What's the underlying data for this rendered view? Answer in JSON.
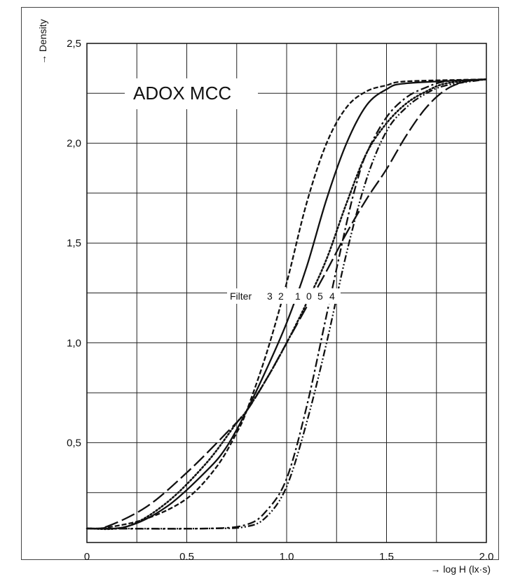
{
  "chart_data": {
    "type": "line",
    "title": "ADOX MCC",
    "xlabel": "→ log H (lx·s)",
    "ylabel": "→ Density",
    "xlim": [
      0,
      2.0
    ],
    "ylim": [
      0,
      2.5
    ],
    "grid": true,
    "x_ticks": [
      {
        "value": 0,
        "label": "0"
      },
      {
        "value": 0.5,
        "label": "0.5"
      },
      {
        "value": 1.0,
        "label": "1.0"
      },
      {
        "value": 1.5,
        "label": "1.5"
      },
      {
        "value": 2.0,
        "label": "2.0"
      }
    ],
    "y_ticks": [
      {
        "value": 0.5,
        "label": "0,5"
      },
      {
        "value": 1.0,
        "label": "1,0"
      },
      {
        "value": 1.5,
        "label": "1,5"
      },
      {
        "value": 2.0,
        "label": "2,0"
      },
      {
        "value": 2.5,
        "label": "2,5"
      }
    ],
    "legend_label": "Filter",
    "series": [
      {
        "name": "3",
        "style": "short-dash",
        "points": [
          [
            0,
            0.07
          ],
          [
            0.1,
            0.075
          ],
          [
            0.3,
            0.12
          ],
          [
            0.5,
            0.22
          ],
          [
            0.65,
            0.38
          ],
          [
            0.75,
            0.55
          ],
          [
            0.8,
            0.66
          ],
          [
            0.9,
            0.95
          ],
          [
            1.0,
            1.3
          ],
          [
            1.1,
            1.7
          ],
          [
            1.2,
            2.0
          ],
          [
            1.3,
            2.18
          ],
          [
            1.4,
            2.26
          ],
          [
            1.5,
            2.29
          ],
          [
            1.6,
            2.31
          ],
          [
            2.0,
            2.32
          ]
        ]
      },
      {
        "name": "2",
        "style": "solid",
        "points": [
          [
            0,
            0.07
          ],
          [
            0.2,
            0.08
          ],
          [
            0.4,
            0.18
          ],
          [
            0.6,
            0.36
          ],
          [
            0.7,
            0.48
          ],
          [
            0.8,
            0.66
          ],
          [
            0.9,
            0.87
          ],
          [
            1.0,
            1.1
          ],
          [
            1.1,
            1.38
          ],
          [
            1.2,
            1.72
          ],
          [
            1.3,
            2.0
          ],
          [
            1.4,
            2.19
          ],
          [
            1.5,
            2.27
          ],
          [
            1.6,
            2.3
          ],
          [
            2.0,
            2.32
          ]
        ]
      },
      {
        "name": "1",
        "style": "dotted",
        "points": [
          [
            0,
            0.07
          ],
          [
            0.2,
            0.08
          ],
          [
            0.4,
            0.2
          ],
          [
            0.6,
            0.4
          ],
          [
            0.75,
            0.6
          ],
          [
            0.8,
            0.66
          ],
          [
            0.9,
            0.82
          ],
          [
            1.0,
            1.0
          ],
          [
            1.1,
            1.2
          ],
          [
            1.2,
            1.42
          ],
          [
            1.3,
            1.7
          ],
          [
            1.4,
            1.95
          ],
          [
            1.5,
            2.1
          ],
          [
            1.6,
            2.2
          ],
          [
            1.7,
            2.26
          ],
          [
            1.8,
            2.3
          ],
          [
            2.0,
            2.32
          ]
        ]
      },
      {
        "name": "0",
        "style": "dash-dot",
        "points": [
          [
            0,
            0.07
          ],
          [
            0.6,
            0.07
          ],
          [
            0.8,
            0.09
          ],
          [
            0.9,
            0.16
          ],
          [
            1.0,
            0.32
          ],
          [
            1.1,
            0.68
          ],
          [
            1.2,
            1.14
          ],
          [
            1.3,
            1.6
          ],
          [
            1.35,
            1.8
          ],
          [
            1.4,
            1.95
          ],
          [
            1.5,
            2.13
          ],
          [
            1.6,
            2.23
          ],
          [
            1.7,
            2.28
          ],
          [
            1.8,
            2.31
          ],
          [
            2.0,
            2.32
          ]
        ]
      },
      {
        "name": "5",
        "style": "dash-dot-dot",
        "points": [
          [
            0,
            0.07
          ],
          [
            0.6,
            0.07
          ],
          [
            0.8,
            0.08
          ],
          [
            0.9,
            0.13
          ],
          [
            1.0,
            0.28
          ],
          [
            1.1,
            0.6
          ],
          [
            1.2,
            1.0
          ],
          [
            1.3,
            1.45
          ],
          [
            1.4,
            1.82
          ],
          [
            1.5,
            2.06
          ],
          [
            1.6,
            2.18
          ],
          [
            1.7,
            2.25
          ],
          [
            1.8,
            2.29
          ],
          [
            2.0,
            2.32
          ]
        ]
      },
      {
        "name": "4",
        "style": "long-dash",
        "points": [
          [
            0,
            0.07
          ],
          [
            0.1,
            0.08
          ],
          [
            0.3,
            0.18
          ],
          [
            0.5,
            0.35
          ],
          [
            0.7,
            0.55
          ],
          [
            0.8,
            0.66
          ],
          [
            0.9,
            0.82
          ],
          [
            1.0,
            1.0
          ],
          [
            1.1,
            1.18
          ],
          [
            1.2,
            1.36
          ],
          [
            1.3,
            1.55
          ],
          [
            1.4,
            1.72
          ],
          [
            1.5,
            1.87
          ],
          [
            1.6,
            2.04
          ],
          [
            1.7,
            2.18
          ],
          [
            1.8,
            2.27
          ],
          [
            1.9,
            2.31
          ],
          [
            2.0,
            2.32
          ]
        ]
      }
    ]
  }
}
